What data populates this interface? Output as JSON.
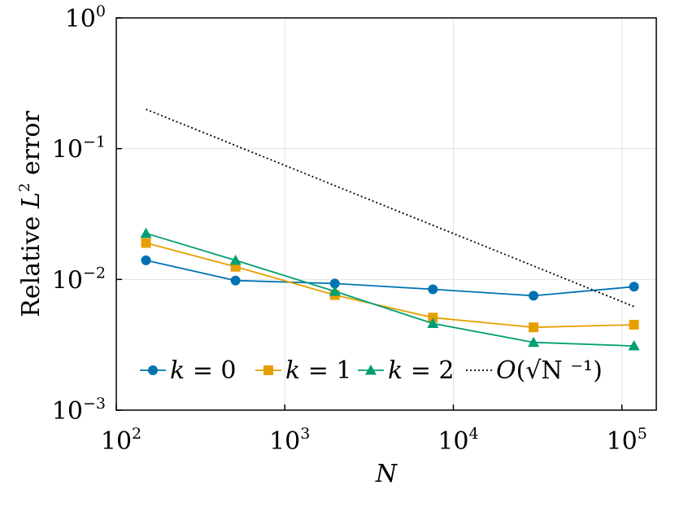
{
  "chart_data": {
    "type": "line",
    "xscale": "log",
    "yscale": "log",
    "xlim": [
      100,
      160000
    ],
    "ylim": [
      0.001,
      1
    ],
    "xlabel": "N",
    "ylabel_parts": {
      "pre": "Relative ",
      "sym": "L",
      "sup": "2",
      "post": " error"
    },
    "grid": true,
    "legend_position": "bottom",
    "x_ticks": [
      {
        "base": "10",
        "exp": "2",
        "value": 100
      },
      {
        "base": "10",
        "exp": "3",
        "value": 1000
      },
      {
        "base": "10",
        "exp": "4",
        "value": 10000
      },
      {
        "base": "10",
        "exp": "5",
        "value": 100000
      }
    ],
    "y_ticks": [
      {
        "base": "10",
        "exp": "0",
        "value": 1
      },
      {
        "base": "10",
        "exp": "−1",
        "value": 0.1
      },
      {
        "base": "10",
        "exp": "−2",
        "value": 0.01
      },
      {
        "base": "10",
        "exp": "−3",
        "value": 0.001
      }
    ],
    "series": [
      {
        "name": "k = 0",
        "lhs": "k",
        "rhs": "0",
        "color": "#0072b2",
        "marker": "circle",
        "style": "solid",
        "x": [
          150,
          510,
          1980,
          7560,
          29900,
          118000
        ],
        "y": [
          0.014,
          0.0098,
          0.0093,
          0.0084,
          0.0075,
          0.0088
        ]
      },
      {
        "name": "k = 1",
        "lhs": "k",
        "rhs": "1",
        "color": "#e69f00",
        "marker": "square",
        "style": "solid",
        "x": [
          150,
          510,
          1980,
          7560,
          29900,
          118000
        ],
        "y": [
          0.019,
          0.0125,
          0.0076,
          0.0051,
          0.0043,
          0.0045
        ]
      },
      {
        "name": "k = 2",
        "lhs": "k",
        "rhs": "2",
        "color": "#009e73",
        "marker": "triangle",
        "style": "solid",
        "x": [
          150,
          510,
          1980,
          7560,
          29900,
          118000
        ],
        "y": [
          0.0225,
          0.014,
          0.0081,
          0.0046,
          0.0033,
          0.0031
        ]
      },
      {
        "name": "O(√N ⁻¹)",
        "lhs": "O",
        "rhs": "√N ⁻¹",
        "color": "#000000",
        "marker": "none",
        "style": "dotted",
        "x": [
          150,
          118000
        ],
        "y": [
          0.2,
          0.0062
        ]
      }
    ]
  }
}
